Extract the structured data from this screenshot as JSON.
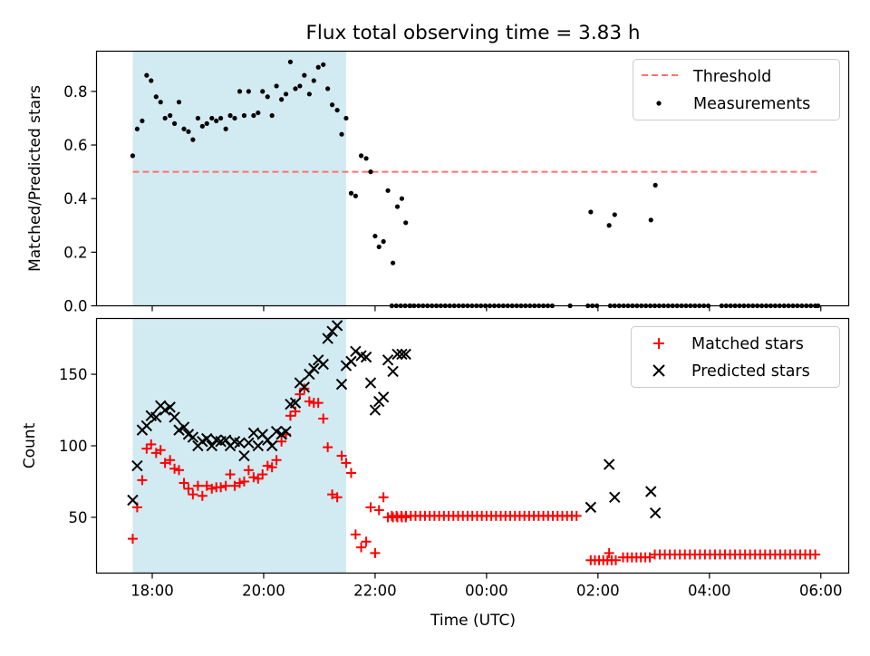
{
  "figure_title": "Flux total observing time = 3.83 h",
  "chart_data": [
    {
      "type": "scatter",
      "ylabel": "Matched/Predicted stars",
      "xlim": [
        17.0,
        30.5
      ],
      "ylim": [
        0,
        0.95
      ],
      "ticks": {
        "x": [
          {
            "v": 18,
            "label": "18:00"
          },
          {
            "v": 20,
            "label": "20:00"
          },
          {
            "v": 22,
            "label": "22:00"
          },
          {
            "v": 24,
            "label": "00:00"
          },
          {
            "v": 26,
            "label": "02:00"
          },
          {
            "v": 28,
            "label": "04:00"
          },
          {
            "v": 30,
            "label": "06:00"
          }
        ],
        "y": [
          {
            "v": 0,
            "label": "0.0"
          },
          {
            "v": 0.2,
            "label": "0.2"
          },
          {
            "v": 0.4,
            "label": "0.4"
          },
          {
            "v": 0.6,
            "label": "0.6"
          },
          {
            "v": 0.8,
            "label": "0.8"
          }
        ]
      },
      "shaded_span": {
        "x": [
          17.65,
          21.48
        ],
        "color": "#add8e6"
      },
      "threshold": {
        "name": "Threshold",
        "y": 0.5,
        "x": [
          17.65,
          29.95
        ],
        "color": "#ff7070"
      },
      "measurements": {
        "name": "Measurements",
        "x": [
          17.65,
          17.73,
          17.82,
          17.9,
          17.98,
          18.07,
          18.15,
          18.23,
          18.32,
          18.4,
          18.48,
          18.57,
          18.65,
          18.73,
          18.82,
          18.9,
          18.98,
          19.07,
          19.15,
          19.23,
          19.32,
          19.4,
          19.48,
          19.57,
          19.65,
          19.73,
          19.82,
          19.9,
          19.98,
          20.07,
          20.15,
          20.23,
          20.32,
          20.4,
          20.48,
          20.57,
          20.65,
          20.73,
          20.82,
          20.9,
          20.98,
          21.07,
          21.15,
          21.23,
          21.32,
          21.4,
          21.48,
          21.57,
          21.65,
          21.75,
          21.84,
          21.92,
          22.0,
          22.07,
          22.15,
          22.23,
          22.32,
          22.4,
          22.48,
          22.55,
          22.63
        ],
        "y": [
          0.56,
          0.66,
          0.69,
          0.86,
          0.84,
          0.78,
          0.76,
          0.7,
          0.71,
          0.68,
          0.76,
          0.66,
          0.65,
          0.62,
          0.7,
          0.67,
          0.68,
          0.7,
          0.69,
          0.7,
          0.66,
          0.71,
          0.7,
          0.8,
          0.71,
          0.8,
          0.71,
          0.72,
          0.8,
          0.78,
          0.71,
          0.82,
          0.77,
          0.79,
          0.91,
          0.81,
          0.82,
          0.86,
          0.79,
          0.84,
          0.89,
          0.9,
          0.81,
          0.75,
          0.73,
          0.64,
          0.7,
          0.42,
          0.41,
          0.56,
          0.55,
          0.5,
          0.26,
          0.22,
          0.24,
          0.43,
          0.16,
          0.37,
          0.4,
          0.31,
          0.0
        ],
        "zero_x": [
          22.3,
          22.38,
          22.46,
          22.54,
          22.62,
          22.7,
          22.78,
          22.86,
          22.94,
          23.02,
          23.1,
          23.18,
          23.26,
          23.34,
          23.42,
          23.5,
          23.58,
          23.66,
          23.74,
          23.82,
          23.9,
          23.98,
          24.06,
          24.14,
          24.22,
          24.3,
          24.38,
          24.46,
          24.54,
          24.62,
          24.7,
          24.78,
          24.86,
          24.94,
          25.02,
          25.1,
          25.18,
          25.26,
          25.34,
          25.42,
          25.5,
          25.58,
          25.66,
          25.74,
          25.82,
          25.9,
          25.98,
          26.06,
          26.14,
          26.22,
          26.3,
          26.38,
          26.46,
          26.54,
          26.62,
          26.7,
          26.78,
          26.86,
          26.94,
          27.02,
          27.1,
          27.18,
          27.26,
          27.34,
          27.42,
          27.5,
          27.58,
          27.66,
          27.74,
          27.82,
          27.9,
          27.98,
          28.06,
          28.14,
          28.22,
          28.3,
          28.38,
          28.46,
          28.54,
          28.62,
          28.7,
          28.78,
          28.86,
          28.94,
          29.02,
          29.1,
          29.18,
          29.26,
          29.34,
          29.42,
          29.5,
          29.58,
          29.66,
          29.74,
          29.82,
          29.9,
          29.95
        ],
        "zero_skip": [
          [
            25.25,
            25.45
          ],
          [
            25.55,
            25.8
          ],
          [
            26.0,
            26.15
          ],
          [
            28.0,
            28.15
          ]
        ],
        "extra": [
          {
            "x": 25.87,
            "y": 0.35
          },
          {
            "x": 26.2,
            "y": 0.3
          },
          {
            "x": 26.3,
            "y": 0.34
          },
          {
            "x": 26.95,
            "y": 0.32
          },
          {
            "x": 27.03,
            "y": 0.45
          }
        ]
      },
      "legend": {
        "placement": "upper right",
        "threshold_label": "Threshold",
        "measurements_label": "Measurements"
      }
    },
    {
      "type": "scatter",
      "xlabel": "Time (UTC)",
      "ylabel": "Count",
      "xlim": [
        17.0,
        30.5
      ],
      "ylim": [
        11,
        189
      ],
      "ticks": {
        "x": [
          {
            "v": 18,
            "label": "18:00"
          },
          {
            "v": 20,
            "label": "20:00"
          },
          {
            "v": 22,
            "label": "22:00"
          },
          {
            "v": 24,
            "label": "00:00"
          },
          {
            "v": 26,
            "label": "02:00"
          },
          {
            "v": 28,
            "label": "04:00"
          },
          {
            "v": 30,
            "label": "06:00"
          }
        ],
        "y": [
          {
            "v": 50,
            "label": "50"
          },
          {
            "v": 100,
            "label": "100"
          },
          {
            "v": 150,
            "label": "150"
          }
        ]
      },
      "shaded_span": {
        "x": [
          17.65,
          21.48
        ],
        "color": "#add8e6"
      },
      "series": [
        {
          "name": "Matched stars",
          "marker": "+",
          "color": "#ff0000",
          "x": [
            17.65,
            17.73,
            17.82,
            17.9,
            17.98,
            18.07,
            18.15,
            18.23,
            18.32,
            18.4,
            18.48,
            18.57,
            18.65,
            18.73,
            18.82,
            18.9,
            18.98,
            19.07,
            19.15,
            19.23,
            19.32,
            19.4,
            19.48,
            19.57,
            19.65,
            19.73,
            19.82,
            19.9,
            19.98,
            20.07,
            20.15,
            20.23,
            20.32,
            20.4,
            20.48,
            20.57,
            20.65,
            20.73,
            20.82,
            20.9,
            20.98,
            21.07,
            21.15,
            21.23,
            21.32,
            21.4,
            21.48,
            21.57,
            21.65,
            21.75,
            21.84,
            21.92,
            22.0,
            22.07,
            22.15,
            22.23,
            22.32,
            22.4,
            22.48,
            22.55
          ],
          "y": [
            35,
            57,
            76,
            98,
            101,
            95,
            97,
            88,
            90,
            84,
            83,
            74,
            70,
            66,
            72,
            65,
            72,
            70,
            71,
            71,
            72,
            80,
            72,
            74,
            75,
            83,
            78,
            77,
            80,
            86,
            85,
            90,
            103,
            108,
            121,
            124,
            136,
            140,
            131,
            130,
            130,
            119,
            99,
            66,
            64,
            93,
            88,
            81,
            38,
            29,
            33,
            57,
            25,
            55,
            64,
            50,
            50,
            50,
            50,
            50
          ],
          "flat": [
            {
              "x_start": 22.3,
              "x_end": 25.62,
              "step": 0.085,
              "y": 51
            },
            {
              "x_start": 25.87,
              "x_end": 26.35,
              "step": 0.075,
              "y": 20
            },
            {
              "x_start": 26.45,
              "x_end": 26.95,
              "step": 0.08,
              "y": 22
            },
            {
              "x_start": 27.02,
              "x_end": 29.98,
              "step": 0.09,
              "y": 24
            }
          ],
          "extra": [
            {
              "x": 26.2,
              "y": 25
            }
          ]
        },
        {
          "name": "Predicted stars",
          "marker": "x",
          "color": "#000000",
          "x": [
            17.65,
            17.73,
            17.82,
            17.9,
            17.98,
            18.07,
            18.15,
            18.23,
            18.32,
            18.4,
            18.48,
            18.57,
            18.65,
            18.73,
            18.82,
            18.9,
            18.98,
            19.07,
            19.15,
            19.23,
            19.32,
            19.4,
            19.48,
            19.57,
            19.65,
            19.73,
            19.82,
            19.9,
            19.98,
            20.07,
            20.15,
            20.23,
            20.32,
            20.4,
            20.48,
            20.57,
            20.65,
            20.73,
            20.82,
            20.9,
            20.98,
            21.07,
            21.15,
            21.23,
            21.32,
            21.4,
            21.48,
            21.57,
            21.65,
            21.75,
            21.84,
            21.92,
            22.0,
            22.07,
            22.15,
            22.23,
            22.32,
            22.4,
            22.48,
            22.55
          ],
          "y": [
            62,
            86,
            111,
            114,
            121,
            120,
            128,
            125,
            127,
            120,
            111,
            113,
            108,
            106,
            100,
            103,
            105,
            100,
            104,
            103,
            104,
            100,
            103,
            102,
            93,
            102,
            109,
            100,
            108,
            104,
            100,
            110,
            108,
            110,
            129,
            130,
            144,
            141,
            150,
            154,
            160,
            157,
            175,
            180,
            184,
            143,
            156,
            159,
            166,
            163,
            162,
            144,
            125,
            131,
            134,
            160,
            152,
            164,
            164,
            164
          ],
          "extra": [
            {
              "x": 25.87,
              "y": 57
            },
            {
              "x": 26.2,
              "y": 87
            },
            {
              "x": 26.3,
              "y": 64
            },
            {
              "x": 26.95,
              "y": 68
            },
            {
              "x": 27.03,
              "y": 53
            }
          ]
        }
      ],
      "legend": {
        "placement": "upper right"
      }
    }
  ]
}
